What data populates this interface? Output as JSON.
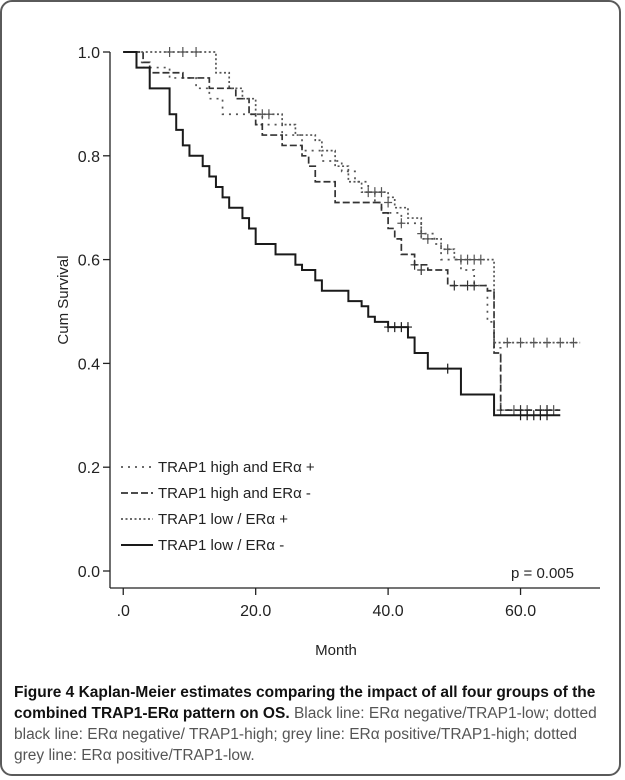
{
  "chart_data": {
    "type": "line",
    "xlabel": "Month",
    "ylabel": "Cum Survival",
    "xlim": [
      -2,
      72
    ],
    "ylim": [
      0,
      1.0
    ],
    "xticks": [
      0,
      20,
      40,
      60
    ],
    "xtick_labels": [
      ".0",
      "20.0",
      "40.0",
      "60.0"
    ],
    "yticks": [
      0.0,
      0.2,
      0.4,
      0.6,
      0.8,
      1.0
    ],
    "ytick_labels": [
      "0.0",
      "0.2",
      "0.4",
      "0.6",
      "0.8",
      "1.0"
    ],
    "annotation": "p = 0.005",
    "legend_position": "bottom-left",
    "series": [
      {
        "name": "TRAP1 high and ERα +",
        "style": "dotted-sparse",
        "color": "#555555",
        "steps": [
          [
            0,
            1.0
          ],
          [
            2,
            0.98
          ],
          [
            3,
            0.97
          ],
          [
            7,
            0.95
          ],
          [
            11,
            0.93
          ],
          [
            13,
            0.91
          ],
          [
            15,
            0.88
          ],
          [
            21,
            0.86
          ],
          [
            24,
            0.84
          ],
          [
            27,
            0.81
          ],
          [
            30,
            0.79
          ],
          [
            33,
            0.77
          ],
          [
            35,
            0.75
          ],
          [
            37,
            0.73
          ],
          [
            38,
            0.71
          ],
          [
            39,
            0.69
          ],
          [
            42,
            0.67
          ],
          [
            45,
            0.65
          ],
          [
            47,
            0.63
          ],
          [
            48,
            0.6
          ],
          [
            51,
            0.58
          ],
          [
            53,
            0.55
          ],
          [
            55,
            0.48
          ],
          [
            56,
            0.43
          ],
          [
            57,
            0.31
          ],
          [
            66,
            0.31
          ]
        ],
        "censors": [
          [
            40,
            0.71
          ],
          [
            42,
            0.67
          ],
          [
            45,
            0.65
          ],
          [
            57,
            0.31
          ],
          [
            59,
            0.31
          ],
          [
            61,
            0.31
          ],
          [
            63,
            0.31
          ],
          [
            64,
            0.31
          ],
          [
            65,
            0.31
          ]
        ]
      },
      {
        "name": "TRAP1 high and ERα -",
        "style": "dashed",
        "color": "#333333",
        "steps": [
          [
            0,
            1.0
          ],
          [
            3,
            0.98
          ],
          [
            4,
            0.96
          ],
          [
            9,
            0.95
          ],
          [
            13,
            0.93
          ],
          [
            17,
            0.91
          ],
          [
            19,
            0.88
          ],
          [
            20,
            0.86
          ],
          [
            21,
            0.84
          ],
          [
            24,
            0.82
          ],
          [
            27,
            0.8
          ],
          [
            28,
            0.78
          ],
          [
            29,
            0.75
          ],
          [
            32,
            0.71
          ],
          [
            36,
            0.71
          ],
          [
            39,
            0.69
          ],
          [
            40,
            0.66
          ],
          [
            41,
            0.64
          ],
          [
            42,
            0.61
          ],
          [
            44,
            0.59
          ],
          [
            46,
            0.58
          ],
          [
            49,
            0.55
          ],
          [
            55,
            0.54
          ],
          [
            56,
            0.42
          ],
          [
            57,
            0.31
          ],
          [
            66,
            0.31
          ]
        ],
        "censors": [
          [
            44,
            0.59
          ],
          [
            45,
            0.58
          ],
          [
            50,
            0.55
          ],
          [
            52,
            0.55
          ],
          [
            53,
            0.55
          ],
          [
            60,
            0.31
          ],
          [
            64,
            0.31
          ]
        ]
      },
      {
        "name": "TRAP1 low / ERα +",
        "style": "dotted-dense",
        "color": "#555555",
        "steps": [
          [
            0,
            1.0
          ],
          [
            13,
            1.0
          ],
          [
            14,
            0.96
          ],
          [
            16,
            0.93
          ],
          [
            18,
            0.91
          ],
          [
            20,
            0.88
          ],
          [
            23,
            0.88
          ],
          [
            24,
            0.86
          ],
          [
            26,
            0.84
          ],
          [
            29,
            0.83
          ],
          [
            30,
            0.81
          ],
          [
            32,
            0.78
          ],
          [
            34,
            0.75
          ],
          [
            36,
            0.73
          ],
          [
            38,
            0.73
          ],
          [
            40,
            0.72
          ],
          [
            41,
            0.7
          ],
          [
            43,
            0.68
          ],
          [
            45,
            0.64
          ],
          [
            48,
            0.62
          ],
          [
            50,
            0.6
          ],
          [
            56,
            0.6
          ],
          [
            56,
            0.44
          ],
          [
            69,
            0.44
          ]
        ],
        "censors": [
          [
            7,
            1.0
          ],
          [
            9,
            1.0
          ],
          [
            11,
            1.0
          ],
          [
            21,
            0.88
          ],
          [
            22,
            0.88
          ],
          [
            37,
            0.73
          ],
          [
            38,
            0.73
          ],
          [
            39,
            0.73
          ],
          [
            46,
            0.64
          ],
          [
            49,
            0.62
          ],
          [
            51,
            0.6
          ],
          [
            52,
            0.6
          ],
          [
            53,
            0.6
          ],
          [
            54,
            0.6
          ],
          [
            58,
            0.44
          ],
          [
            60,
            0.44
          ],
          [
            62,
            0.44
          ],
          [
            64,
            0.44
          ],
          [
            66,
            0.44
          ],
          [
            68,
            0.44
          ]
        ]
      },
      {
        "name": "TRAP1 low / ERα -",
        "style": "solid",
        "color": "#1a1a1a",
        "steps": [
          [
            0,
            1.0
          ],
          [
            2,
            0.97
          ],
          [
            4,
            0.93
          ],
          [
            7,
            0.88
          ],
          [
            8,
            0.85
          ],
          [
            9,
            0.82
          ],
          [
            10,
            0.8
          ],
          [
            12,
            0.78
          ],
          [
            13,
            0.76
          ],
          [
            14,
            0.74
          ],
          [
            15,
            0.72
          ],
          [
            16,
            0.7
          ],
          [
            18,
            0.68
          ],
          [
            19,
            0.66
          ],
          [
            20,
            0.63
          ],
          [
            23,
            0.61
          ],
          [
            26,
            0.59
          ],
          [
            27,
            0.58
          ],
          [
            29,
            0.56
          ],
          [
            30,
            0.54
          ],
          [
            34,
            0.52
          ],
          [
            36,
            0.51
          ],
          [
            37,
            0.49
          ],
          [
            38,
            0.48
          ],
          [
            40,
            0.47
          ],
          [
            43,
            0.45
          ],
          [
            44,
            0.42
          ],
          [
            46,
            0.39
          ],
          [
            51,
            0.34
          ],
          [
            55,
            0.34
          ],
          [
            56,
            0.3
          ],
          [
            66,
            0.3
          ]
        ],
        "censors": [
          [
            40,
            0.47
          ],
          [
            41,
            0.47
          ],
          [
            42,
            0.47
          ],
          [
            43,
            0.47
          ],
          [
            49,
            0.39
          ],
          [
            60,
            0.3
          ],
          [
            61,
            0.3
          ],
          [
            62,
            0.3
          ],
          [
            63,
            0.3
          ],
          [
            64,
            0.3
          ]
        ]
      }
    ]
  },
  "caption": {
    "bold": "Figure 4 Kaplan-Meier estimates comparing the impact of all four groups of the combined TRAP1-ERα pattern on OS.",
    "normal": " Black line: ERα negative/TRAP1-low; dotted black line: ERα negative/ TRAP1-high; grey line: ERα positive/TRAP1-high; dotted grey line: ERα positive/TRAP1-low."
  }
}
